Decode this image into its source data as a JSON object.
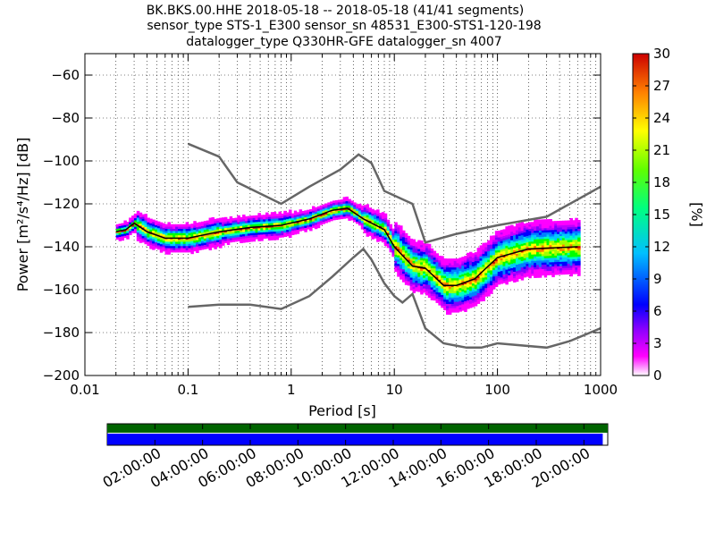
{
  "title": {
    "line1": "BK.BKS.00.HHE   2018-05-18 -- 2018-05-18  (41/41 segments)",
    "line2": "sensor_type STS-1_E300 sensor_sn 48531_E300-STS1-120-198",
    "line3": "datalogger_type Q330HR-GFE datalogger_sn 4007"
  },
  "chart_data": [
    {
      "type": "heatmap",
      "title": "BK.BKS.00.HHE   2018-05-18 -- 2018-05-18  (41/41 segments)",
      "xlabel": "Period [s]",
      "ylabel": "Power [m²/s⁴/Hz] [dB]",
      "x_scale": "log",
      "xlim": [
        0.01,
        1000
      ],
      "ylim": [
        -200,
        -50
      ],
      "grid": true,
      "x_ticks": [
        0.01,
        0.1,
        1,
        10,
        100,
        1000
      ],
      "x_tick_labels": [
        "0.01",
        "0.1",
        "1",
        "10",
        "100",
        "1000"
      ],
      "y_ticks": [
        -60,
        -80,
        -100,
        -120,
        -140,
        -160,
        -180,
        -200
      ],
      "y_tick_labels": [
        "−60",
        "−80",
        "−100",
        "−120",
        "−140",
        "−160",
        "−180",
        "−200"
      ],
      "colorbar": {
        "label": "[%]",
        "range": [
          0,
          30
        ],
        "ticks": [
          0,
          3,
          6,
          9,
          12,
          15,
          18,
          21,
          24,
          27,
          30
        ],
        "colors": [
          "#ffffff",
          "#c000ff",
          "#0000ff",
          "#00c8ff",
          "#00ff00",
          "#ffff00",
          "#ff8000",
          "#cc0000"
        ]
      },
      "series": [
        {
          "points": [
            [
              0.1,
              -92
            ],
            [
              0.2,
              -98
            ],
            [
              0.3,
              -110
            ],
            [
              0.8,
              -120
            ],
            [
              1.5,
              -112
            ],
            [
              3.0,
              -104
            ],
            [
              4.5,
              -97
            ],
            [
              6.0,
              -101
            ],
            [
              8.0,
              -114
            ],
            [
              15,
              -120
            ],
            [
              20,
              -138
            ],
            [
              40,
              -134
            ],
            [
              100,
              -130
            ],
            [
              300,
              -126
            ],
            [
              1000,
              -112
            ]
          ]
        },
        {
          "points": [
            [
              0.1,
              -168
            ],
            [
              0.2,
              -167
            ],
            [
              0.4,
              -167
            ],
            [
              0.8,
              -169
            ],
            [
              1.5,
              -163
            ],
            [
              2.5,
              -154
            ],
            [
              4.0,
              -145
            ],
            [
              5.0,
              -141
            ],
            [
              6.0,
              -146
            ],
            [
              8.0,
              -157
            ],
            [
              10,
              -163
            ],
            [
              12,
              -166
            ],
            [
              15,
              -162
            ],
            [
              20,
              -178
            ],
            [
              30,
              -185
            ],
            [
              50,
              -187
            ],
            [
              70,
              -187
            ],
            [
              100,
              -185
            ],
            [
              300,
              -187
            ],
            [
              500,
              -184
            ],
            [
              1000,
              -178
            ]
          ]
        },
        {
          "points": [
            [
              0.02,
              -133
            ],
            [
              0.025,
              -132
            ],
            [
              0.03,
              -129
            ],
            [
              0.04,
              -133
            ],
            [
              0.06,
              -136
            ],
            [
              0.1,
              -136
            ],
            [
              0.2,
              -133
            ],
            [
              0.4,
              -131
            ],
            [
              0.8,
              -130
            ],
            [
              1.5,
              -127
            ],
            [
              2.5,
              -123
            ],
            [
              3.5,
              -122
            ],
            [
              5.0,
              -127
            ],
            [
              8.0,
              -132
            ],
            [
              10,
              -140
            ],
            [
              15,
              -149
            ],
            [
              20,
              -150
            ],
            [
              30,
              -158
            ],
            [
              40,
              -158
            ],
            [
              60,
              -155
            ],
            [
              100,
              -145
            ],
            [
              200,
              -141
            ],
            [
              600,
              -140
            ]
          ]
        }
      ]
    },
    {
      "type": "timeline",
      "x_tick_labels": [
        "02:00:00",
        "04:00:00",
        "06:00:00",
        "08:00:00",
        "10:00:00",
        "12:00:00",
        "14:00:00",
        "16:00:00",
        "18:00:00",
        "20:00:00"
      ],
      "bars": [
        {
          "color": "#006400",
          "start": 0,
          "end": 1.0
        },
        {
          "color": "#0000ff",
          "start": 0,
          "end": 0.99
        }
      ]
    }
  ]
}
